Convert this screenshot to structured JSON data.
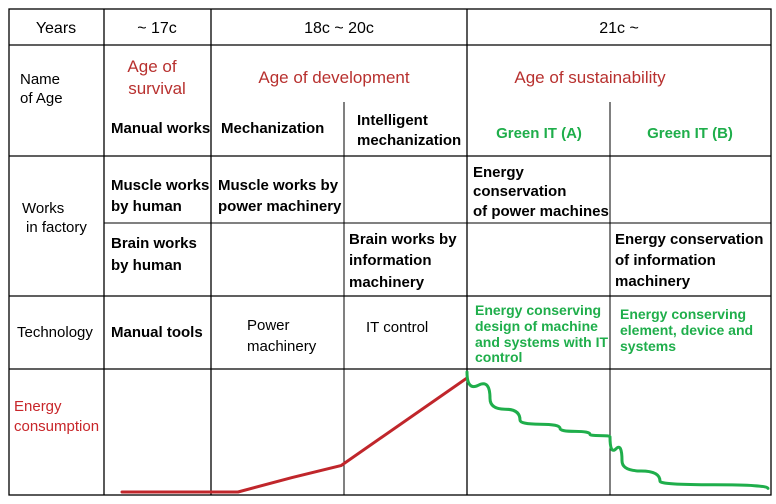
{
  "header": {
    "years_label": "Years",
    "period_1": "~ 17c",
    "period_2": "18c ~ 20c",
    "period_3": "21c ~"
  },
  "rows": {
    "name_of_age": [
      "Name",
      "of Age"
    ],
    "works_in_factory": [
      "Works",
      "in factory"
    ],
    "technology": "Technology",
    "energy_consumption": [
      "Energy",
      "consumption"
    ]
  },
  "ages": {
    "survival": [
      "Age of",
      "survival"
    ],
    "development": "Age of development",
    "sustainability": "Age of sustainability"
  },
  "stages": {
    "manual_works": "Manual works",
    "mechanization": "Mechanization",
    "intelligent_mechanization": [
      "Intelligent",
      "mechanization"
    ],
    "green_it_a": "Green IT (A)",
    "green_it_b": "Green IT (B)"
  },
  "muscle_works": {
    "human": [
      "Muscle works",
      "by human"
    ],
    "power_machinery": [
      "Muscle works by",
      "power machinery"
    ],
    "energy_conservation_power": [
      "Energy",
      "conservation",
      "of power machines"
    ]
  },
  "brain_works": {
    "human": [
      "Brain works",
      "by human"
    ],
    "information_machinery": [
      "Brain works by",
      "information",
      "machinery"
    ],
    "energy_conservation_info": [
      "Energy conservation",
      "of information",
      "machinery"
    ]
  },
  "technology": {
    "manual_tools": "Manual tools",
    "power_machinery": [
      "Power",
      "machinery"
    ],
    "it_control": "IT control",
    "green_a": [
      "Energy conserving",
      "design of  machine",
      "and systems with IT",
      "control"
    ],
    "green_b": [
      "Energy conserving",
      "element, device and",
      "systems"
    ]
  },
  "colors": {
    "age_red": "#b8312f",
    "curve_red": "#c0262b",
    "green": "#1fae4b"
  },
  "energy_curve": {
    "red_segment": [
      0.0,
      0.0,
      0.12,
      0.22,
      0.62,
      0.95
    ],
    "green_segment": [
      1.0,
      0.78,
      0.6,
      0.53,
      0.48,
      0.46,
      0.26,
      0.09,
      0.03
    ]
  }
}
